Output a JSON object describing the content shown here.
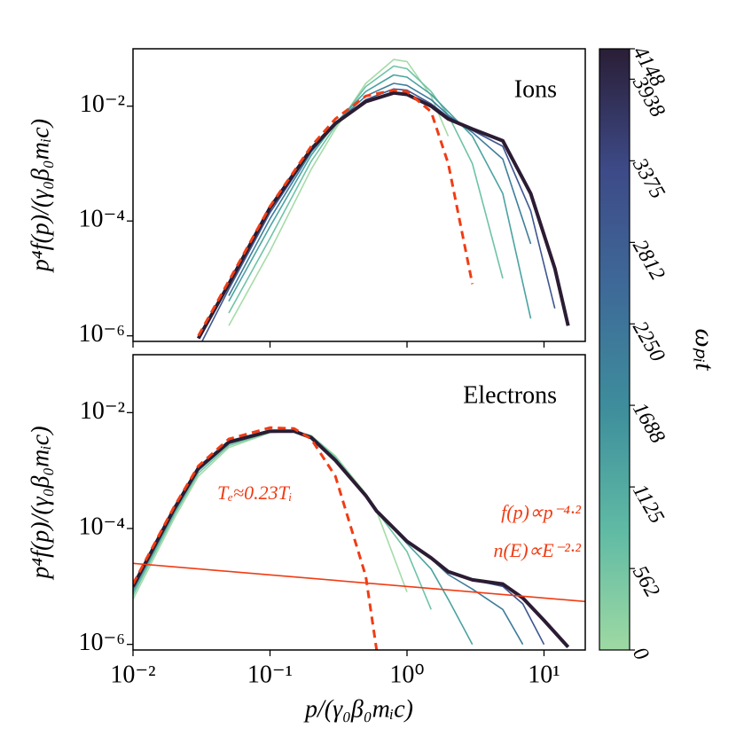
{
  "chart_data": [
    {
      "type": "line",
      "ylabel": "p⁴f(p)/(γ₀β₀mᵢc)",
      "annotations": [
        "Ions"
      ],
      "log_x": true,
      "log_y": true,
      "xlim": [
        0.01,
        20
      ],
      "ylim": [
        8e-07,
        0.1
      ],
      "xticks": [
        {
          "value": 0.01,
          "label": "10⁻²"
        },
        {
          "value": 0.1,
          "label": "10⁻¹"
        },
        {
          "value": 1,
          "label": "10⁰"
        },
        {
          "value": 10,
          "label": "10¹"
        }
      ],
      "yticks": [
        {
          "value": 1e-06,
          "label": "10⁻⁶"
        },
        {
          "value": 0.0001,
          "label": "10⁻⁴"
        },
        {
          "value": 0.01,
          "label": "10⁻²"
        }
      ],
      "x": [
        0.03,
        0.05,
        0.1,
        0.2,
        0.3,
        0.5,
        0.8,
        1,
        1.5,
        2,
        3,
        5,
        8,
        12,
        15
      ],
      "series": [
        {
          "color": "#a6dba8",
          "values": [
            null,
            1.5e-06,
            3e-05,
            0.0008,
            0.004,
            0.025,
            0.065,
            0.06,
            0.015,
            0.003,
            null,
            null,
            null,
            null,
            null
          ]
        },
        {
          "color": "#6fc3a6",
          "values": [
            null,
            2.5e-06,
            5e-05,
            0.0011,
            0.0045,
            0.022,
            0.05,
            0.045,
            0.018,
            0.007,
            0.001,
            1e-05,
            null,
            null,
            null
          ]
        },
        {
          "color": "#4aa3a0",
          "values": [
            null,
            4e-06,
            8e-05,
            0.0014,
            0.005,
            0.018,
            0.035,
            0.032,
            0.016,
            0.008,
            0.003,
            0.0003,
            2e-06,
            null,
            null
          ]
        },
        {
          "color": "#3f7d9b",
          "values": [
            null,
            5e-06,
            0.00011,
            0.0016,
            0.005,
            0.015,
            0.025,
            0.023,
            0.013,
            0.007,
            0.0035,
            0.0012,
            4e-05,
            null,
            null
          ]
        },
        {
          "color": "#3e5690",
          "values": [
            6e-07,
            6.5e-06,
            0.00014,
            0.0017,
            0.005,
            0.013,
            0.02,
            0.019,
            0.011,
            0.0065,
            0.0038,
            0.002,
            0.00015,
            3e-06,
            null
          ]
        },
        {
          "color": "#2b1c33",
          "linewidth": 4,
          "values": [
            9e-07,
            8e-06,
            0.00017,
            0.0018,
            0.005,
            0.012,
            0.017,
            0.016,
            0.01,
            0.006,
            0.004,
            0.0025,
            0.0003,
            1.5e-05,
            1.5e-06
          ]
        },
        {
          "color": "#f03c14",
          "linestyle": "dashed",
          "values": [
            1e-06,
            9e-06,
            0.00018,
            0.002,
            0.006,
            0.015,
            0.019,
            0.018,
            0.008,
            0.001,
            8e-06,
            null,
            null,
            null,
            null
          ]
        }
      ]
    },
    {
      "type": "line",
      "ylabel": "p⁴f(p)/(γ₀β₀mᵢc)",
      "xlabel": "p/(γ₀β₀mᵢc)",
      "annotations": [
        "Electrons",
        "Tₑ≈0.23Tᵢ",
        "f(p)∝p⁻⁴·²",
        "n(E)∝E⁻²·²"
      ],
      "log_x": true,
      "log_y": true,
      "xlim": [
        0.01,
        20
      ],
      "ylim": [
        8e-07,
        0.1
      ],
      "xticks": [
        {
          "value": 0.01,
          "label": "10⁻²"
        },
        {
          "value": 0.1,
          "label": "10⁻¹"
        },
        {
          "value": 1,
          "label": "10⁰"
        },
        {
          "value": 10,
          "label": "10¹"
        }
      ],
      "yticks": [
        {
          "value": 1e-06,
          "label": "10⁻⁶"
        },
        {
          "value": 0.0001,
          "label": "10⁻⁴"
        },
        {
          "value": 0.01,
          "label": "10⁻²"
        }
      ],
      "x": [
        0.01,
        0.02,
        0.03,
        0.05,
        0.1,
        0.15,
        0.2,
        0.3,
        0.5,
        0.6,
        1,
        1.5,
        2,
        3,
        5,
        7,
        10,
        15
      ],
      "series": [
        {
          "color": "#a6dba8",
          "values": [
            6e-06,
            0.00015,
            0.0008,
            0.0025,
            0.0045,
            0.0048,
            0.004,
            0.0018,
            0.0004,
            0.0002,
            8e-06,
            null,
            null,
            null,
            null,
            null,
            null,
            null
          ]
        },
        {
          "color": "#6fc3a6",
          "values": [
            7e-06,
            0.00017,
            0.0009,
            0.0027,
            0.0046,
            0.0048,
            0.004,
            0.0017,
            0.00038,
            0.0002,
            4e-05,
            4e-06,
            null,
            null,
            null,
            null,
            null,
            null
          ]
        },
        {
          "color": "#4aa3a0",
          "values": [
            8e-06,
            0.00019,
            0.001,
            0.0029,
            0.0047,
            0.0048,
            0.0039,
            0.0016,
            0.00037,
            0.0002,
            5.5e-05,
            2e-05,
            6e-06,
            1e-06,
            null,
            null,
            null,
            null
          ]
        },
        {
          "color": "#3f7d9b",
          "values": [
            9e-06,
            0.0002,
            0.001,
            0.003,
            0.0048,
            0.0048,
            0.0038,
            0.0016,
            0.00037,
            0.0002,
            6e-05,
            3e-05,
            1.6e-05,
            9e-06,
            4e-06,
            1e-06,
            null,
            null
          ]
        },
        {
          "color": "#3e5690",
          "values": [
            1e-05,
            0.00021,
            0.0011,
            0.0031,
            0.0048,
            0.0048,
            0.0037,
            0.0015,
            0.00037,
            0.0002,
            6e-05,
            3.2e-05,
            1.8e-05,
            1.3e-05,
            1e-05,
            5e-06,
            1e-06,
            null
          ]
        },
        {
          "color": "#2b1c33",
          "linewidth": 4,
          "values": [
            1e-05,
            0.00022,
            0.0011,
            0.0031,
            0.0048,
            0.0048,
            0.0037,
            0.0015,
            0.00037,
            0.0002,
            6e-05,
            3.1e-05,
            1.8e-05,
            1.3e-05,
            1.1e-05,
            6.3e-06,
            2.6e-06,
            9e-07
          ]
        },
        {
          "color": "#f03c14",
          "linestyle": "dashed",
          "values": [
            1.1e-05,
            0.00024,
            0.0012,
            0.0035,
            0.0055,
            0.0053,
            0.0035,
            0.0008,
            1.5e-05,
            8e-07,
            null,
            null,
            null,
            null,
            null,
            null,
            null,
            null
          ]
        },
        {
          "color": "#f03c14",
          "x": [
            0.01,
            20
          ],
          "values": [
            2.5e-05,
            5.5e-06
          ]
        }
      ]
    }
  ],
  "colorbar": {
    "label": "ωₚᵢt",
    "lim": [
      0,
      4148
    ],
    "ticks": [
      0,
      562,
      1125,
      1688,
      2250,
      2812,
      3375,
      3938,
      4148
    ],
    "colors": [
      "#9ed9a3",
      "#5fbaa4",
      "#3e8e9c",
      "#3e6a98",
      "#3d4a87",
      "#2a1e36"
    ]
  }
}
